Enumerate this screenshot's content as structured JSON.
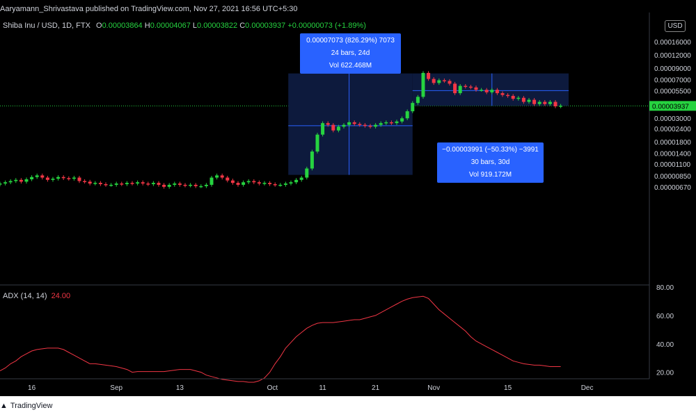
{
  "header": {
    "publisher": "Aaryamann_Shrivastava published on TradingView.com, Nov 27, 2021 16:56 UTC+5:30",
    "symbol": "Shiba Inu / USD, 1D, FTX",
    "o_label": "O",
    "o_value": "0.00003864",
    "h_label": "H",
    "h_value": "0.00004067",
    "l_label": "L",
    "l_value": "0.00003822",
    "c_label": "C",
    "c_value": "0.00003937",
    "change": "+0.00000073 (+1.89%)",
    "currency": "USD"
  },
  "measure_up": {
    "line1": "0.00007073 (826.29%) 7073",
    "line2": "24 bars, 24d",
    "line3": "Vol 622.468M"
  },
  "measure_down": {
    "line1": "−0.00003991 (−50.33%) −3991",
    "line2": "30 bars, 30d",
    "line3": "Vol 919.172M"
  },
  "adx": {
    "label": "ADX (14, 14)",
    "value": "24.00"
  },
  "footer": {
    "brand": "TradingView"
  },
  "colors": {
    "up": "#26d340",
    "down": "#f23645",
    "measure_box": "#0d1a3d",
    "measure_accent": "#2962ff",
    "adx_line": "#f23645",
    "last_price": "#26d340"
  },
  "chart_data": [
    {
      "type": "candlestick",
      "y_scale": "log",
      "price_ticks": [
        "0.00016000",
        "0.00012000",
        "0.00009000",
        "0.00007000",
        "0.00005500",
        "0.00003000",
        "0.00002400",
        "0.00001800",
        "0.00001400",
        "0.00001100",
        "0.00000850",
        "0.00000670"
      ],
      "last_price_label": "0.00003937",
      "x_ticks": [
        "16",
        "Sep",
        "13",
        "Oct",
        "11",
        "21",
        "Nov",
        "15",
        "Dec"
      ],
      "close": [
        7.2e-06,
        7.4e-06,
        7.6e-06,
        7.8e-06,
        7.5e-06,
        7.9e-06,
        8.3e-06,
        8.6e-06,
        8.2e-06,
        7.8e-06,
        8e-06,
        8.3e-06,
        8.1e-06,
        8e-06,
        8.2e-06,
        7.6e-06,
        7.5e-06,
        7.2e-06,
        7.3e-06,
        7.1e-06,
        7e-06,
        7e-06,
        7.2e-06,
        7.1e-06,
        7.3e-06,
        7.2e-06,
        7.4e-06,
        7.2e-06,
        7.1e-06,
        7.3e-06,
        7e-06,
        6.7e-06,
        7e-06,
        7.2e-06,
        7e-06,
        6.9e-06,
        7e-06,
        6.8e-06,
        6.8e-06,
        7e-06,
        8.2e-06,
        8.6e-06,
        8.2e-06,
        7.7e-06,
        7.3e-06,
        7e-06,
        7.4e-06,
        7.6e-06,
        7.4e-06,
        7.2e-06,
        7.3e-06,
        7.1e-06,
        7e-06,
        7e-06,
        7.2e-06,
        7.4e-06,
        7.8e-06,
        8.2e-06,
        1e-05,
        1.45e-05,
        2.1e-05,
        2.7e-05,
        2.6e-05,
        2.3e-05,
        2.5e-05,
        2.6e-05,
        2.75e-05,
        2.65e-05,
        2.6e-05,
        2.55e-05,
        2.5e-05,
        2.6e-05,
        2.7e-05,
        2.75e-05,
        2.7e-05,
        2.8e-05,
        3e-05,
        3.5e-05,
        4.2e-05,
        4.8e-05,
        8.1e-05,
        7.1e-05,
        6.5e-05,
        6.9e-05,
        6.8e-05,
        6.4e-05,
        5.2e-05,
        6.1e-05,
        6e-05,
        5.9e-05,
        5.6e-05,
        5.6e-05,
        5.3e-05,
        5.6e-05,
        5.2e-05,
        5e-05,
        4.9e-05,
        4.6e-05,
        4.7e-05,
        4.3e-05,
        4.5e-05,
        4.1e-05,
        4.3e-05,
        4.1e-05,
        4.3e-05,
        3.9e-05,
        3.95e-05
      ]
    },
    {
      "type": "line",
      "name": "ADX (14, 14)",
      "y_ticks": [
        "80.00",
        "60.00",
        "40.00",
        "20.00"
      ],
      "ylim": [
        13,
        80
      ],
      "values": [
        21,
        23,
        26,
        28,
        31,
        33,
        35,
        36,
        36.5,
        37,
        37,
        37,
        36,
        34,
        32,
        30,
        28,
        26,
        26,
        25.5,
        25,
        24.5,
        24,
        23,
        22,
        20,
        20.5,
        20.5,
        20.5,
        20.5,
        20.5,
        20.5,
        21,
        21.5,
        22,
        22,
        22,
        21,
        20,
        18,
        17,
        16,
        15,
        14.5,
        14,
        13.5,
        13.5,
        13,
        13,
        14,
        16,
        20,
        26,
        31,
        37,
        41,
        45,
        48,
        51,
        53,
        54.5,
        55,
        55,
        55,
        55.5,
        56,
        56.5,
        57,
        57,
        58,
        59,
        60,
        62,
        64,
        66,
        68,
        70,
        71.5,
        72.5,
        73,
        73.5,
        72,
        68,
        64,
        61,
        58,
        55,
        52,
        49,
        45,
        42,
        40,
        38,
        36,
        34,
        32,
        30,
        28,
        27,
        26,
        25.5,
        25,
        25,
        24.5,
        24,
        24,
        24
      ]
    }
  ]
}
